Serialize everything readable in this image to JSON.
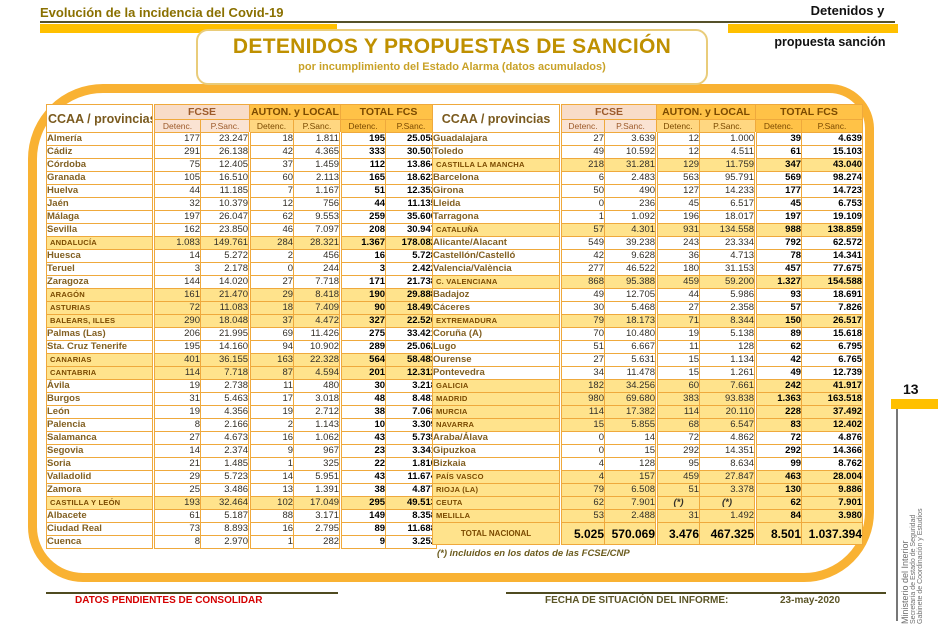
{
  "page": {
    "top_left_title": "Evolución de la incidencia del Covid-19",
    "top_right_line1": "Detenidos y",
    "top_right_line2": "propuesta sanción",
    "title": "DETENIDOS Y PROPUESTAS DE SANCIÓN",
    "subtitle": "por incumplimiento del Estado Alarma (datos acumulados)",
    "page_number": "13",
    "sidebar_lines": {
      "line1": "Ministerio del Interior",
      "line2": "Secretaría de Estado de Seguridad",
      "line3": "Gabinete de Coordinación y Estudios"
    },
    "footnote": "(*) incluidos en los datos de las FCSE/CNP",
    "footer": {
      "left_note": "DATOS PENDIENTES DE CONSOLIDAR",
      "right_label": "FECHA DE SITUACIÓN DEL INFORME:",
      "right_date": "23-may-2020"
    }
  },
  "colors": {
    "accent_gold": "#FFC000",
    "frame_gold": "#F9B233",
    "table_border": "#EFA93C",
    "ccaa_row_bg": "#FFE38C",
    "fcse_header_bg": "#F8DCC8",
    "gold_header_bg": "#FFC247",
    "title_text": "#BF9000",
    "note_red": "#D40000"
  },
  "table_headers": {
    "label": "CCAA / provincias",
    "groups": [
      "FCSE",
      "AUTON. y LOCAL",
      "TOTAL FCS"
    ],
    "sub": [
      "Detenc.",
      "P.Sanc."
    ]
  },
  "left_table": {
    "rows": [
      {
        "type": "province",
        "label": "Almería",
        "values": [
          "177",
          "23.247",
          "18",
          "1.811",
          "195",
          "25.058"
        ]
      },
      {
        "type": "province",
        "label": "Cádiz",
        "values": [
          "291",
          "26.138",
          "42",
          "4.365",
          "333",
          "30.503"
        ]
      },
      {
        "type": "province",
        "label": "Córdoba",
        "values": [
          "75",
          "12.405",
          "37",
          "1.459",
          "112",
          "13.864"
        ]
      },
      {
        "type": "province",
        "label": "Granada",
        "values": [
          "105",
          "16.510",
          "60",
          "2.113",
          "165",
          "18.623"
        ]
      },
      {
        "type": "province",
        "label": "Huelva",
        "values": [
          "44",
          "11.185",
          "7",
          "1.167",
          "51",
          "12.352"
        ]
      },
      {
        "type": "province",
        "label": "Jaén",
        "values": [
          "32",
          "10.379",
          "12",
          "756",
          "44",
          "11.135"
        ]
      },
      {
        "type": "province",
        "label": "Málaga",
        "values": [
          "197",
          "26.047",
          "62",
          "9.553",
          "259",
          "35.600"
        ]
      },
      {
        "type": "province",
        "label": "Sevilla",
        "values": [
          "162",
          "23.850",
          "46",
          "7.097",
          "208",
          "30.947"
        ]
      },
      {
        "type": "ccaa",
        "label": "ANDALUCÍA",
        "values": [
          "1.083",
          "149.761",
          "284",
          "28.321",
          "1.367",
          "178.082"
        ]
      },
      {
        "type": "province",
        "label": "Huesca",
        "values": [
          "14",
          "5.272",
          "2",
          "456",
          "16",
          "5.728"
        ]
      },
      {
        "type": "province",
        "label": "Teruel",
        "values": [
          "3",
          "2.178",
          "0",
          "244",
          "3",
          "2.422"
        ]
      },
      {
        "type": "province",
        "label": "Zaragoza",
        "values": [
          "144",
          "14.020",
          "27",
          "7.718",
          "171",
          "21.738"
        ]
      },
      {
        "type": "ccaa",
        "label": "ARAGÓN",
        "values": [
          "161",
          "21.470",
          "29",
          "8.418",
          "190",
          "29.888"
        ]
      },
      {
        "type": "ccaa",
        "label": "ASTURIAS",
        "values": [
          "72",
          "11.083",
          "18",
          "7.409",
          "90",
          "18.492"
        ]
      },
      {
        "type": "ccaa",
        "label": "BALEARS, ILLES",
        "values": [
          "290",
          "18.048",
          "37",
          "4.472",
          "327",
          "22.520"
        ]
      },
      {
        "type": "province",
        "label": "Palmas (Las)",
        "values": [
          "206",
          "21.995",
          "69",
          "11.426",
          "275",
          "33.421"
        ]
      },
      {
        "type": "province",
        "label": "Sta. Cruz Tenerife",
        "values": [
          "195",
          "14.160",
          "94",
          "10.902",
          "289",
          "25.062"
        ]
      },
      {
        "type": "ccaa",
        "label": "CANARIAS",
        "values": [
          "401",
          "36.155",
          "163",
          "22.328",
          "564",
          "58.483"
        ]
      },
      {
        "type": "ccaa",
        "label": "CANTABRIA",
        "values": [
          "114",
          "7.718",
          "87",
          "4.594",
          "201",
          "12.312"
        ]
      },
      {
        "type": "province",
        "label": "Ávila",
        "values": [
          "19",
          "2.738",
          "11",
          "480",
          "30",
          "3.218"
        ]
      },
      {
        "type": "province",
        "label": "Burgos",
        "values": [
          "31",
          "5.463",
          "17",
          "3.018",
          "48",
          "8.481"
        ]
      },
      {
        "type": "province",
        "label": "León",
        "values": [
          "19",
          "4.356",
          "19",
          "2.712",
          "38",
          "7.068"
        ]
      },
      {
        "type": "province",
        "label": "Palencia",
        "values": [
          "8",
          "2.166",
          "2",
          "1.143",
          "10",
          "3.309"
        ]
      },
      {
        "type": "province",
        "label": "Salamanca",
        "values": [
          "27",
          "4.673",
          "16",
          "1.062",
          "43",
          "5.735"
        ]
      },
      {
        "type": "province",
        "label": "Segovia",
        "values": [
          "14",
          "2.374",
          "9",
          "967",
          "23",
          "3.341"
        ]
      },
      {
        "type": "province",
        "label": "Soria",
        "values": [
          "21",
          "1.485",
          "1",
          "325",
          "22",
          "1.810"
        ]
      },
      {
        "type": "province",
        "label": "Valladolid",
        "values": [
          "29",
          "5.723",
          "14",
          "5.951",
          "43",
          "11.674"
        ]
      },
      {
        "type": "province",
        "label": "Zamora",
        "values": [
          "25",
          "3.486",
          "13",
          "1.391",
          "38",
          "4.877"
        ]
      },
      {
        "type": "ccaa",
        "label": "CASTILLA Y LEÓN",
        "values": [
          "193",
          "32.464",
          "102",
          "17.049",
          "295",
          "49.513"
        ]
      },
      {
        "type": "province",
        "label": "Albacete",
        "values": [
          "61",
          "5.187",
          "88",
          "3.171",
          "149",
          "8.358"
        ]
      },
      {
        "type": "province",
        "label": "Ciudad Real",
        "values": [
          "73",
          "8.893",
          "16",
          "2.795",
          "89",
          "11.688"
        ]
      },
      {
        "type": "province",
        "label": "Cuenca",
        "values": [
          "8",
          "2.970",
          "1",
          "282",
          "9",
          "3.252"
        ]
      }
    ]
  },
  "right_table": {
    "rows": [
      {
        "type": "province",
        "label": "Guadalajara",
        "values": [
          "27",
          "3.639",
          "12",
          "1.000",
          "39",
          "4.639"
        ]
      },
      {
        "type": "province",
        "label": "Toledo",
        "values": [
          "49",
          "10.592",
          "12",
          "4.511",
          "61",
          "15.103"
        ]
      },
      {
        "type": "ccaa",
        "label": "CASTILLA LA MANCHA",
        "values": [
          "218",
          "31.281",
          "129",
          "11.759",
          "347",
          "43.040"
        ]
      },
      {
        "type": "province",
        "label": "Barcelona",
        "values": [
          "6",
          "2.483",
          "563",
          "95.791",
          "569",
          "98.274"
        ]
      },
      {
        "type": "province",
        "label": "Girona",
        "values": [
          "50",
          "490",
          "127",
          "14.233",
          "177",
          "14.723"
        ]
      },
      {
        "type": "province",
        "label": "Lleida",
        "values": [
          "0",
          "236",
          "45",
          "6.517",
          "45",
          "6.753"
        ]
      },
      {
        "type": "province",
        "label": "Tarragona",
        "values": [
          "1",
          "1.092",
          "196",
          "18.017",
          "197",
          "19.109"
        ]
      },
      {
        "type": "ccaa",
        "label": "CATALUÑA",
        "values": [
          "57",
          "4.301",
          "931",
          "134.558",
          "988",
          "138.859"
        ]
      },
      {
        "type": "province",
        "label": "Alicante/Alacant",
        "values": [
          "549",
          "39.238",
          "243",
          "23.334",
          "792",
          "62.572"
        ]
      },
      {
        "type": "province",
        "label": "Castellón/Castelló",
        "values": [
          "42",
          "9.628",
          "36",
          "4.713",
          "78",
          "14.341"
        ]
      },
      {
        "type": "province",
        "label": "Valencia/València",
        "values": [
          "277",
          "46.522",
          "180",
          "31.153",
          "457",
          "77.675"
        ]
      },
      {
        "type": "ccaa",
        "label": "C. VALENCIANA",
        "values": [
          "868",
          "95.388",
          "459",
          "59.200",
          "1.327",
          "154.588"
        ]
      },
      {
        "type": "province",
        "label": "Badajoz",
        "values": [
          "49",
          "12.705",
          "44",
          "5.986",
          "93",
          "18.691"
        ]
      },
      {
        "type": "province",
        "label": "Cáceres",
        "values": [
          "30",
          "5.468",
          "27",
          "2.358",
          "57",
          "7.826"
        ]
      },
      {
        "type": "ccaa",
        "label": "EXTREMADURA",
        "values": [
          "79",
          "18.173",
          "71",
          "8.344",
          "150",
          "26.517"
        ]
      },
      {
        "type": "province",
        "label": "Coruña (A)",
        "values": [
          "70",
          "10.480",
          "19",
          "5.138",
          "89",
          "15.618"
        ]
      },
      {
        "type": "province",
        "label": "Lugo",
        "values": [
          "51",
          "6.667",
          "11",
          "128",
          "62",
          "6.795"
        ]
      },
      {
        "type": "province",
        "label": "Ourense",
        "values": [
          "27",
          "5.631",
          "15",
          "1.134",
          "42",
          "6.765"
        ]
      },
      {
        "type": "province",
        "label": "Pontevedra",
        "values": [
          "34",
          "11.478",
          "15",
          "1.261",
          "49",
          "12.739"
        ]
      },
      {
        "type": "ccaa",
        "label": "GALICIA",
        "values": [
          "182",
          "34.256",
          "60",
          "7.661",
          "242",
          "41.917"
        ]
      },
      {
        "type": "ccaa",
        "label": "MADRID",
        "values": [
          "980",
          "69.680",
          "383",
          "93.838",
          "1.363",
          "163.518"
        ]
      },
      {
        "type": "ccaa",
        "label": "MURCIA",
        "values": [
          "114",
          "17.382",
          "114",
          "20.110",
          "228",
          "37.492"
        ]
      },
      {
        "type": "ccaa",
        "label": "NAVARRA",
        "values": [
          "15",
          "5.855",
          "68",
          "6.547",
          "83",
          "12.402"
        ]
      },
      {
        "type": "province",
        "label": "Araba/Álava",
        "values": [
          "0",
          "14",
          "72",
          "4.862",
          "72",
          "4.876"
        ]
      },
      {
        "type": "province",
        "label": "Gipuzkoa",
        "values": [
          "0",
          "15",
          "292",
          "14.351",
          "292",
          "14.366"
        ]
      },
      {
        "type": "province",
        "label": "Bizkaia",
        "values": [
          "4",
          "128",
          "95",
          "8.634",
          "99",
          "8.762"
        ]
      },
      {
        "type": "ccaa",
        "label": "PAÍS VASCO",
        "values": [
          "4",
          "157",
          "459",
          "27.847",
          "463",
          "28.004"
        ]
      },
      {
        "type": "ccaa",
        "label": "RIOJA (LA)",
        "values": [
          "79",
          "6.508",
          "51",
          "3.378",
          "130",
          "9.886"
        ]
      },
      {
        "type": "ccaa",
        "label": "CEUTA",
        "values": [
          "62",
          "7.901",
          "(*)",
          "(*)",
          "62",
          "7.901"
        ]
      },
      {
        "type": "ccaa",
        "label": "MELILLA",
        "values": [
          "53",
          "2.488",
          "31",
          "1.492",
          "84",
          "3.980"
        ]
      },
      {
        "type": "total-row",
        "label": "TOTAL NACIONAL",
        "values": [
          "5.025",
          "570.069",
          "3.476",
          "467.325",
          "8.501",
          "1.037.394"
        ]
      }
    ]
  }
}
